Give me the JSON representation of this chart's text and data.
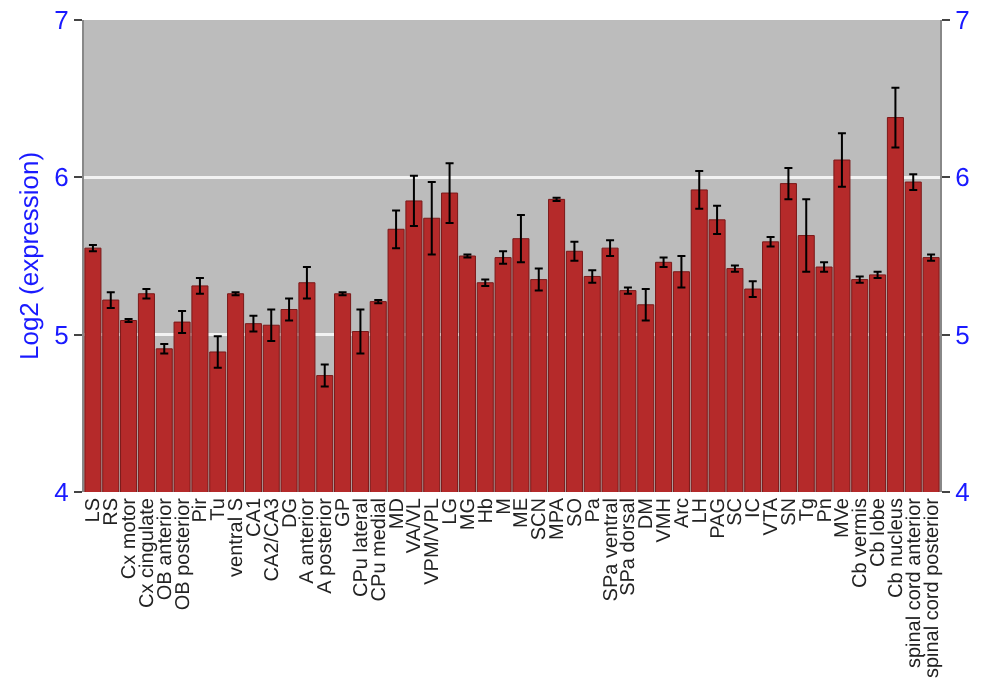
{
  "chart_data": {
    "type": "bar",
    "ylabel": "Log2 (expression)",
    "categories": [
      "LS",
      "RS",
      "Cx motor",
      "Cx cingulate",
      "OB anterior",
      "OB posterior",
      "Pir",
      "Tu",
      "ventral S",
      "CA1",
      "CA2/CA3",
      "DG",
      "A anterior",
      "A posterior",
      "GP",
      "CPu lateral",
      "CPu medial",
      "MD",
      "VA/VL",
      "VPM/VPL",
      "LG",
      "MG",
      "Hb",
      "M",
      "ME",
      "SCN",
      "MPA",
      "SO",
      "Pa",
      "SPa ventral",
      "SPa dorsal",
      "DM",
      "VMH",
      "Arc",
      "LH",
      "PAG",
      "SC",
      "IC",
      "VTA",
      "SN",
      "Tg",
      "Pn",
      "MVe",
      "Cb vermis",
      "Cb lobe",
      "Cb nucleus",
      "spinal cord anterior",
      "spinal cord posterior"
    ],
    "values": [
      5.55,
      5.22,
      5.09,
      5.26,
      4.91,
      5.08,
      5.31,
      4.89,
      5.26,
      5.07,
      5.06,
      5.16,
      5.33,
      4.74,
      5.26,
      5.02,
      5.21,
      5.67,
      5.85,
      5.74,
      5.9,
      5.5,
      5.33,
      5.49,
      5.61,
      5.35,
      5.86,
      5.53,
      5.37,
      5.55,
      5.28,
      5.19,
      5.46,
      5.4,
      5.92,
      5.73,
      5.42,
      5.29,
      5.59,
      5.96,
      5.63,
      5.43,
      6.11,
      5.35,
      5.38,
      6.38,
      5.97,
      5.49
    ],
    "errors": [
      0.02,
      0.05,
      0.01,
      0.03,
      0.03,
      0.07,
      0.05,
      0.1,
      0.01,
      0.05,
      0.1,
      0.07,
      0.1,
      0.07,
      0.01,
      0.14,
      0.01,
      0.12,
      0.16,
      0.23,
      0.19,
      0.01,
      0.02,
      0.04,
      0.15,
      0.07,
      0.01,
      0.06,
      0.04,
      0.05,
      0.02,
      0.1,
      0.03,
      0.1,
      0.12,
      0.09,
      0.02,
      0.05,
      0.03,
      0.1,
      0.23,
      0.03,
      0.17,
      0.02,
      0.02,
      0.19,
      0.05,
      0.02
    ],
    "color": "#b52a2a",
    "ylim": [
      4,
      7
    ],
    "yticks": [
      4,
      5,
      6,
      7
    ],
    "y2lim": [
      4,
      7
    ],
    "y2ticks": [
      4,
      5,
      6,
      7
    ],
    "grid": "y"
  }
}
